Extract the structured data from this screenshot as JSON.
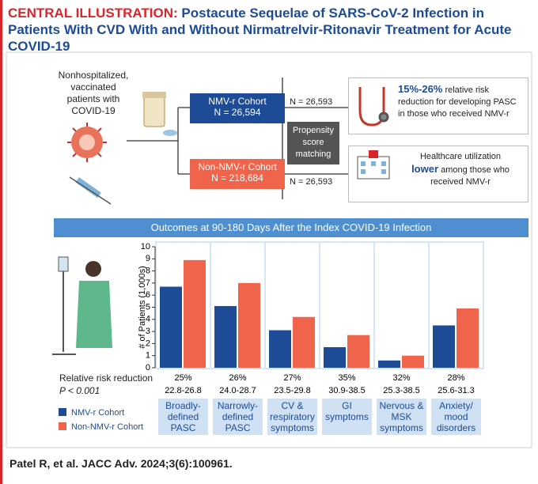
{
  "title": {
    "label": "CENTRAL ILLUSTRATION:",
    "text": "Postacute Sequelae of SARS-CoV-2 Infection in Patients With CVD With and Without Nirmatrelvir-Ritonavir Treatment for Acute COVID-19"
  },
  "flow": {
    "population": "Nonhospitalized, vaccinated patients with COVID-19",
    "nmvr_box": {
      "name": "NMV-r Cohort",
      "n": "N = 26,594"
    },
    "non_nmvr_box": {
      "name": "Non-NMV-r Cohort",
      "n": "N = 218,684"
    },
    "matched_n": [
      "N = 26,593",
      "N = 26,593"
    ],
    "matching": "Propensity score matching",
    "finding_1": {
      "highlight": "15%-26%",
      "text": "relative risk reduction for developing PASC in those who received NMV-r"
    },
    "finding_2": {
      "lead": "Healthcare utilization",
      "highlight": "lower",
      "text": "among those who received NMV-r"
    }
  },
  "chart_data": {
    "type": "bar",
    "title": "Outcomes at 90-180 Days After the Index COVID-19 Infection",
    "y_label": "# of Patients (1,000s)",
    "categories": [
      "Broadly-defined PASC",
      "Narrowly-defined PASC",
      "CV & respiratory symptoms",
      "GI symptoms",
      "Nervous & MSK symptoms",
      "Anxiety/ mood disorders"
    ],
    "series": [
      {
        "name": "NMV-r Cohort",
        "color": "#1d4b95",
        "values": [
          6.7,
          5.1,
          3.1,
          1.7,
          0.6,
          3.5
        ]
      },
      {
        "name": "Non-NMV-r Cohort",
        "color": "#f0644c",
        "values": [
          8.9,
          7.0,
          4.2,
          2.7,
          1.0,
          4.9
        ]
      }
    ],
    "ylim": [
      0,
      10
    ],
    "yticks": [
      0,
      1,
      2,
      3,
      4,
      5,
      6,
      7,
      8,
      9,
      10
    ],
    "risk": {
      "label": "Relative risk reduction",
      "p_value": "P < 0.001",
      "percent": [
        "25%",
        "26%",
        "27%",
        "35%",
        "32%",
        "28%"
      ],
      "ci": [
        "22.8-26.8",
        "24.0-28.7",
        "23.5-29.8",
        "30.9-38.5",
        "25.3-38.5",
        "25.6-31.3"
      ]
    }
  },
  "citation": "Patel R, et al. JACC Adv. 2024;3(6):100961."
}
